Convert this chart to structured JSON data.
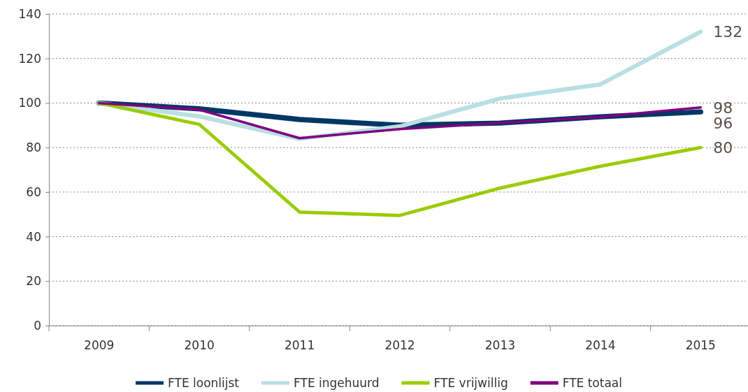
{
  "chart_data": {
    "type": "line",
    "categories": [
      "2009",
      "2010",
      "2011",
      "2012",
      "2013",
      "2014",
      "2015"
    ],
    "series": [
      {
        "name": "FTE loonlijst",
        "color": "#003764",
        "values": [
          100,
          97.4,
          92.6,
          90,
          91,
          93.8,
          96
        ],
        "value_labels": [
          null,
          null,
          null,
          null,
          null,
          null,
          "96"
        ]
      },
      {
        "name": "FTE ingehuurd",
        "color": "#b9dfe3",
        "values": [
          100,
          94,
          83.9,
          89.5,
          102,
          108.4,
          132
        ],
        "value_labels": [
          null,
          null,
          null,
          null,
          null,
          null,
          "132"
        ]
      },
      {
        "name": "FTE vrijwillig",
        "color": "#99cc00",
        "values": [
          100,
          90.4,
          51,
          49.5,
          61.8,
          71.6,
          80
        ],
        "value_labels": [
          null,
          null,
          null,
          null,
          null,
          null,
          "80"
        ]
      },
      {
        "name": "FTE totaal",
        "color": "#7f0080",
        "values": [
          100,
          97,
          84.2,
          88.3,
          91,
          93.8,
          98
        ],
        "value_labels": [
          null,
          null,
          null,
          null,
          null,
          null,
          "98"
        ]
      }
    ],
    "ylim": [
      0,
      140
    ],
    "yticks": [
      0,
      20,
      40,
      60,
      80,
      100,
      120,
      140
    ],
    "grid": "y",
    "legend": "bottom",
    "marker": "none",
    "line_style": "solid"
  }
}
